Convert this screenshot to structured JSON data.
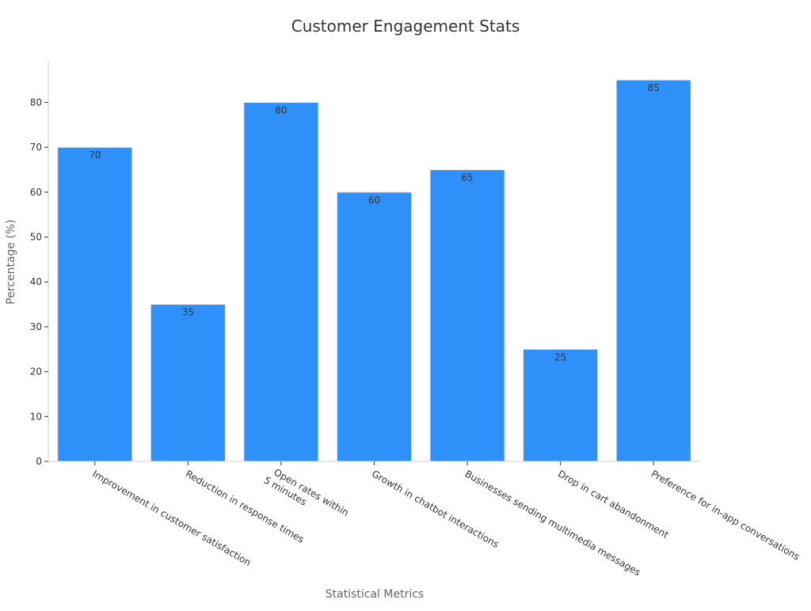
{
  "chart_data": {
    "type": "bar",
    "title": "Customer Engagement Stats",
    "xlabel": "Statistical Metrics",
    "ylabel": "Percentage (%)",
    "categories": [
      "Improvement in customer satisfaction",
      "Reduction in response times",
      "Open rates within\n5 minutes",
      "Growth in chatbot interactions",
      "Businesses sending multimedia messages",
      "Drop in cart abandonment",
      "Preference for in-app conversations"
    ],
    "values": [
      70,
      35,
      80,
      60,
      65,
      25,
      85
    ],
    "data_labels": [
      "70",
      "35",
      "80",
      "60",
      "65",
      "25",
      "85"
    ],
    "yticks": [
      0,
      10,
      20,
      30,
      40,
      50,
      60,
      70,
      80
    ],
    "ylim": [
      0,
      89.25
    ],
    "grid": false,
    "legend": "none",
    "colors": {
      "bar": "#2E90F8",
      "bar_edge": "#e6e6e6",
      "axis": "#cccccc",
      "text": "#333333",
      "axis_label": "#666666"
    }
  }
}
